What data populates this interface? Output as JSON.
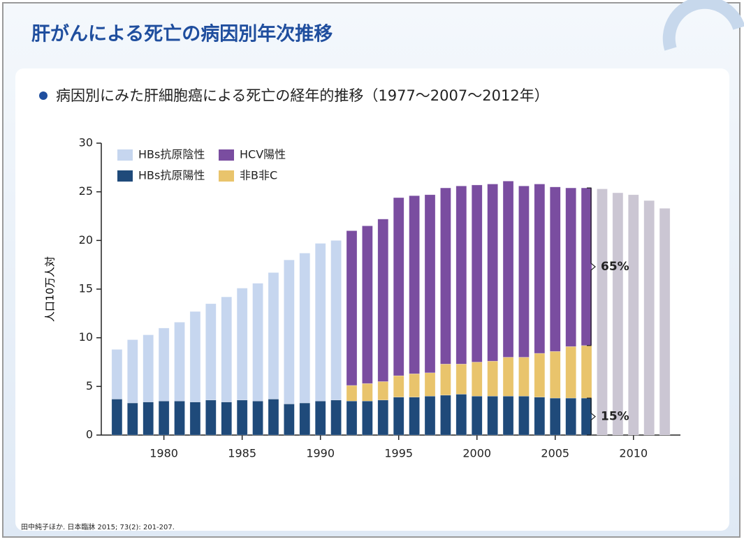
{
  "chart_data": {
    "type": "bar",
    "title": "肝がんによる死亡の病因別年次推移",
    "subtitle": "病因別にみた肝細胞癌による死亡の経年的推移（1977～2007～2012年）",
    "ylabel": "人口10万人対",
    "source": "田中純子ほか. 日本臨牀 2015; 73(2): 201-207.",
    "x": [
      1977,
      1978,
      1979,
      1980,
      1981,
      1982,
      1983,
      1984,
      1985,
      1986,
      1987,
      1988,
      1989,
      1990,
      1991,
      1992,
      1993,
      1994,
      1995,
      1996,
      1997,
      1998,
      1999,
      2000,
      2001,
      2002,
      2003,
      2004,
      2005,
      2006,
      2007,
      2008,
      2009,
      2010,
      2011,
      2012
    ],
    "xlim": [
      1976,
      2013
    ],
    "xticks": [
      1980,
      1985,
      1990,
      1995,
      2000,
      2005,
      2010
    ],
    "ylim": [
      0,
      30
    ],
    "yticks": [
      0,
      5,
      10,
      15,
      20,
      25,
      30
    ],
    "stacked": true,
    "series": [
      {
        "name": "HBs抗原陽性",
        "color": "#1f4a7a",
        "values": [
          3.7,
          3.3,
          3.4,
          3.5,
          3.5,
          3.4,
          3.6,
          3.4,
          3.6,
          3.5,
          3.7,
          3.2,
          3.3,
          3.5,
          3.6,
          3.5,
          3.5,
          3.6,
          3.9,
          3.9,
          4.0,
          4.1,
          4.2,
          4.0,
          4.0,
          4.0,
          4.0,
          3.9,
          3.8,
          3.8,
          3.8,
          null,
          null,
          null,
          null,
          null
        ]
      },
      {
        "name": "非B非C",
        "color": "#e9c46c",
        "values": [
          null,
          null,
          null,
          null,
          null,
          null,
          null,
          null,
          null,
          null,
          null,
          null,
          null,
          null,
          null,
          1.6,
          1.8,
          1.9,
          2.2,
          2.4,
          2.4,
          3.2,
          3.1,
          3.5,
          3.6,
          4.0,
          4.0,
          4.5,
          4.8,
          5.3,
          5.4,
          null,
          null,
          null,
          null,
          null
        ]
      },
      {
        "name": "HCV陽性",
        "color": "#7a4da0",
        "values": [
          null,
          null,
          null,
          null,
          null,
          null,
          null,
          null,
          null,
          null,
          null,
          null,
          null,
          null,
          null,
          15.9,
          16.2,
          16.7,
          18.3,
          18.3,
          18.3,
          18.1,
          18.3,
          18.2,
          18.2,
          18.1,
          17.6,
          17.4,
          16.9,
          16.3,
          16.2,
          null,
          null,
          null,
          null,
          null
        ]
      },
      {
        "name": "HBs抗原陰性",
        "color": "#c6d6ef",
        "values": [
          5.1,
          6.5,
          6.9,
          7.5,
          8.1,
          9.3,
          9.9,
          10.8,
          11.5,
          12.1,
          13.0,
          14.8,
          15.4,
          16.2,
          16.4,
          null,
          null,
          null,
          null,
          null,
          null,
          null,
          null,
          null,
          null,
          null,
          null,
          null,
          null,
          null,
          null,
          null,
          null,
          null,
          null,
          null
        ]
      },
      {
        "color": "#cbc6d3",
        "values": [
          null,
          null,
          null,
          null,
          null,
          null,
          null,
          null,
          null,
          null,
          null,
          null,
          null,
          null,
          null,
          null,
          null,
          null,
          null,
          null,
          null,
          null,
          null,
          null,
          null,
          null,
          null,
          null,
          null,
          null,
          null,
          25.3,
          24.9,
          24.7,
          24.1,
          23.3
        ]
      }
    ],
    "annotations": [
      "65%",
      "15%"
    ]
  }
}
